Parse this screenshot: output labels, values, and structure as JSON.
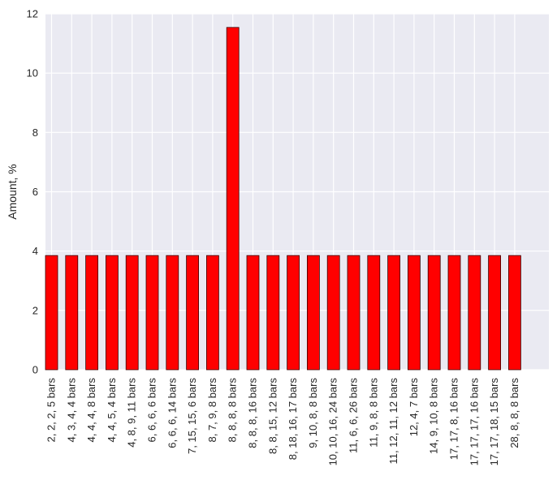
{
  "chart_data": {
    "type": "bar",
    "title": "",
    "xlabel": "",
    "ylabel": "Amount, %",
    "ylim": [
      0,
      12
    ],
    "yticks": [
      0,
      2,
      4,
      6,
      8,
      10,
      12
    ],
    "grid": true,
    "bar_color": "#ff0000",
    "background_color": "#eaeaf2",
    "categories": [
      "2, 2, 2, 5 bars",
      "4, 3, 4, 4 bars",
      "4, 4, 4, 8 bars",
      "4, 4, 5, 4 bars",
      "4, 8, 9, 11 bars",
      "6, 6, 6, 6 bars",
      "6, 6, 6, 14 bars",
      "7, 15, 15, 6 bars",
      "8, 7, 9, 8 bars",
      "8, 8, 8, 8 bars",
      "8, 8, 8, 16 bars",
      "8, 8, 15, 12 bars",
      "8, 18, 16, 17 bars",
      "9, 10, 8, 8 bars",
      "10, 10, 16, 24 bars",
      "11, 6, 6, 26 bars",
      "11, 9, 8, 8 bars",
      "11, 12, 11, 12 bars",
      "12, 4, 7 bars",
      "14, 9, 10, 8 bars",
      "17, 17, 8, 16 bars",
      "17, 17, 17, 16 bars",
      "17, 17, 18, 15 bars",
      "28, 8, 8, 8 bars"
    ],
    "values": [
      3.85,
      3.85,
      3.85,
      3.85,
      3.85,
      3.85,
      3.85,
      3.85,
      3.85,
      11.54,
      3.85,
      3.85,
      3.85,
      3.85,
      3.85,
      3.85,
      3.85,
      3.85,
      3.85,
      3.85,
      3.85,
      3.85,
      3.85,
      3.85
    ]
  }
}
